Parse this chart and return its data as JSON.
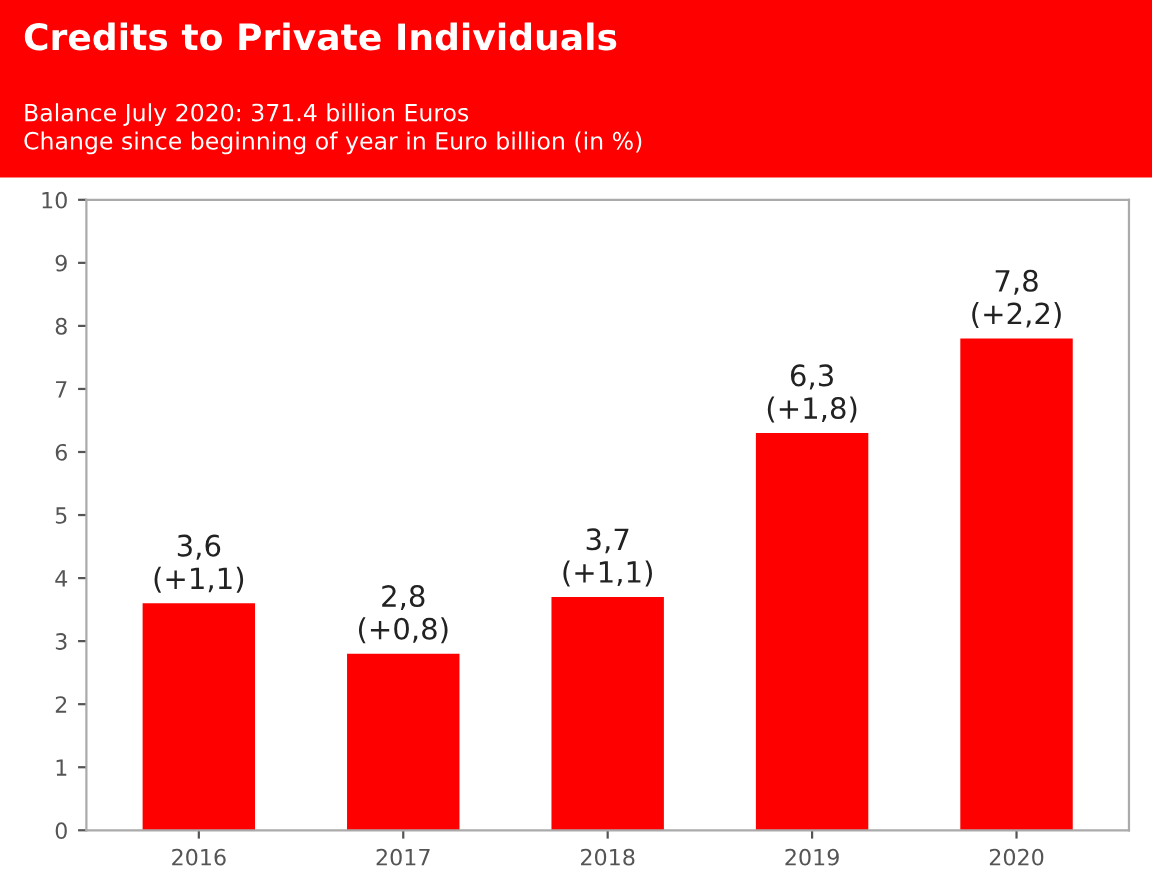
{
  "chart_data": {
    "type": "bar",
    "title": "Credits to Private Individuals",
    "subtitle": "Balance July 2020: 371.4 billion Euros\nChange since beginning of year in Euro billion (in %)",
    "categories": [
      "2016",
      "2017",
      "2018",
      "2019",
      "2020"
    ],
    "values": [
      3.6,
      2.8,
      3.7,
      6.3,
      7.8
    ],
    "value_labels": [
      "3,6\n(+1,1)",
      "2,8\n(+0,8)",
      "3,7\n(+1,1)",
      "6,3\n(+1,8)",
      "7,8\n(+2,2)"
    ],
    "color": "#ff0000",
    "ylim": [
      0,
      10
    ],
    "yticks": [
      0,
      1,
      2,
      3,
      4,
      5,
      6,
      7,
      8,
      9,
      10
    ],
    "grid": false
  }
}
